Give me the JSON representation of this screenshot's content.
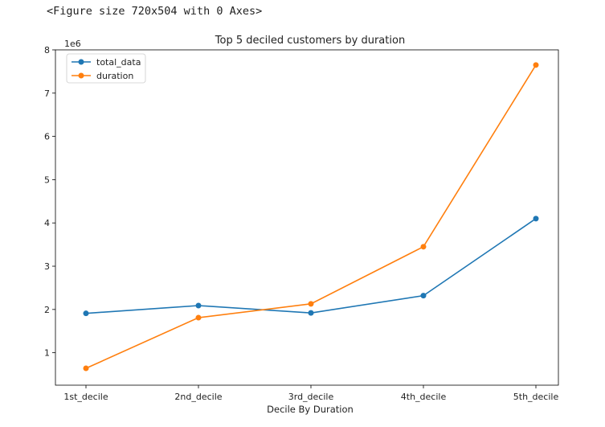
{
  "output_text": "<Figure size 720x504 with 0 Axes>",
  "chart_data": {
    "type": "line",
    "title": "Top 5 deciled customers by duration",
    "xlabel": "Decile By Duration",
    "ylabel": "",
    "y_offset_label": "1e6",
    "categories": [
      "1st_decile",
      "2nd_decile",
      "3rd_decile",
      "4th_decile",
      "5th_decile"
    ],
    "y_ticks": [
      1,
      2,
      3,
      4,
      5,
      6,
      7,
      8
    ],
    "ylim": [
      0.25,
      8.0
    ],
    "grid": false,
    "legend_position": "top-left",
    "series": [
      {
        "name": "total_data",
        "color": "#1f77b4",
        "values": [
          1.91,
          2.09,
          1.92,
          2.32,
          4.1
        ]
      },
      {
        "name": "duration",
        "color": "#ff7f0e",
        "values": [
          0.64,
          1.81,
          2.13,
          3.45,
          7.65
        ]
      }
    ]
  }
}
